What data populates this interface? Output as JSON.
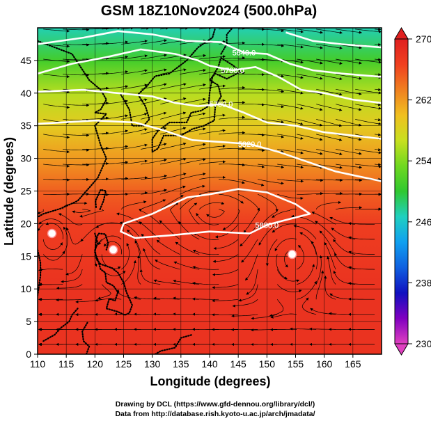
{
  "chart_data": {
    "type": "heatmap",
    "title": "GSM 18Z10Nov2024 (500.0hPa)",
    "xlabel": "Longitude (degrees)",
    "ylabel": "Latitude  (degrees)",
    "xlim": [
      110,
      170
    ],
    "ylim": [
      0,
      50
    ],
    "x_ticks": [
      110,
      115,
      120,
      125,
      130,
      135,
      140,
      145,
      150,
      155,
      160,
      165
    ],
    "y_ticks": [
      0,
      5,
      10,
      15,
      20,
      25,
      30,
      35,
      40,
      45
    ],
    "colorbar": {
      "min": 230,
      "max": 270,
      "ticks": [
        230,
        238,
        246,
        254,
        262,
        270
      ],
      "colors": [
        "#e040c0",
        "#8000c0",
        "#1010c0",
        "#1060e0",
        "#10a0f0",
        "#20d0c0",
        "#30c830",
        "#70d820",
        "#c8e020",
        "#f0c020",
        "#f08020",
        "#f04020",
        "#e02020"
      ]
    },
    "temperature_bands": [
      {
        "lat": 0,
        "value": 268
      },
      {
        "lat": 10,
        "value": 268
      },
      {
        "lat": 20,
        "value": 267
      },
      {
        "lat": 25,
        "value": 265
      },
      {
        "lat": 30,
        "value": 262
      },
      {
        "lat": 35,
        "value": 259
      },
      {
        "lat": 40,
        "value": 256
      },
      {
        "lat": 45,
        "value": 251
      },
      {
        "lat": 50,
        "value": 247
      }
    ],
    "contours": [
      {
        "label": "5880.0",
        "points": [
          [
            125,
            20
          ],
          [
            130,
            21.5
          ],
          [
            136,
            24
          ],
          [
            140,
            24.5
          ],
          [
            145,
            25.3
          ],
          [
            150,
            24.8
          ],
          [
            155,
            23
          ],
          [
            157.5,
            21.5
          ],
          [
            153,
            20.5
          ],
          [
            150,
            19.8
          ],
          [
            147,
            18.5
          ],
          [
            140,
            18.8
          ],
          [
            133,
            18.2
          ],
          [
            127,
            17.8
          ],
          [
            124.5,
            18.8
          ],
          [
            125,
            20
          ]
        ],
        "closed": true
      },
      {
        "label": "5820.0",
        "points": [
          [
            110,
            35.3
          ],
          [
            120,
            35.8
          ],
          [
            127,
            35.5
          ],
          [
            132,
            34.3
          ],
          [
            137,
            32.8
          ],
          [
            142,
            32.5
          ],
          [
            147,
            32.2
          ],
          [
            152,
            31
          ],
          [
            157,
            29.5
          ],
          [
            162,
            28
          ],
          [
            170,
            26.5
          ]
        ]
      },
      {
        "label": "5760.0",
        "points": [
          [
            110,
            40.2
          ],
          [
            118,
            40.5
          ],
          [
            124,
            40
          ],
          [
            130,
            39.5
          ],
          [
            134,
            38.5
          ],
          [
            138,
            38
          ],
          [
            142,
            38.3
          ],
          [
            146,
            37
          ],
          [
            150,
            35.5
          ],
          [
            155,
            35
          ],
          [
            160,
            34
          ],
          [
            170,
            33
          ]
        ]
      },
      {
        "label": "5700.0",
        "points": [
          [
            110,
            43
          ],
          [
            116,
            44.5
          ],
          [
            122,
            45.5
          ],
          [
            128,
            46.7
          ],
          [
            134,
            46
          ],
          [
            138,
            45
          ],
          [
            140,
            44.2
          ],
          [
            144,
            43.5
          ],
          [
            148,
            44
          ],
          [
            152,
            42.5
          ],
          [
            156,
            40.5
          ],
          [
            160,
            40
          ],
          [
            165,
            39
          ],
          [
            170,
            38.5
          ]
        ]
      },
      {
        "label": "5640.0",
        "points": [
          [
            110,
            47.5
          ],
          [
            118,
            48.5
          ],
          [
            124,
            49.5
          ],
          [
            130,
            49
          ],
          [
            136,
            48
          ],
          [
            142,
            47.8
          ],
          [
            146,
            46.2
          ],
          [
            150,
            46
          ],
          [
            154,
            44.5
          ],
          [
            158,
            43.5
          ],
          [
            163,
            43
          ],
          [
            170,
            42.5
          ]
        ]
      },
      {
        "label": "",
        "points": [
          [
            153.3,
            49.3
          ],
          [
            158,
            48
          ],
          [
            163,
            47.5
          ],
          [
            170,
            47
          ]
        ]
      }
    ],
    "closed_lows": [
      {
        "lon": 112.5,
        "lat": 18.5
      },
      {
        "lon": 123.2,
        "lat": 16.0
      },
      {
        "lon": 154.4,
        "lat": 15.3
      }
    ],
    "credits": [
      "Drawing by DCL (https://www.gfd-dennou.org/library/dcl/)",
      "Data from http://database.rish.kyoto-u.ac.jp/arch/jmadata/"
    ]
  }
}
